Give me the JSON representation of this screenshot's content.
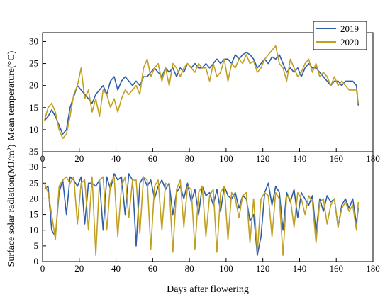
{
  "chart_data": [
    {
      "type": "line",
      "ylabel": "Mean temperature(°C)",
      "xlim": [
        0,
        180
      ],
      "ylim": [
        5,
        32
      ],
      "x_ticks": [
        0,
        20,
        40,
        60,
        80,
        100,
        120,
        140,
        160,
        180
      ],
      "y_ticks": [
        5,
        10,
        15,
        20,
        25,
        30
      ],
      "legend_position": "top-right",
      "series": [
        {
          "name": "2019",
          "color": "#2f5da8",
          "x": [
            1,
            3,
            5,
            7,
            9,
            11,
            13,
            15,
            17,
            19,
            21,
            23,
            25,
            27,
            29,
            31,
            33,
            35,
            37,
            39,
            41,
            43,
            45,
            47,
            49,
            51,
            53,
            55,
            57,
            59,
            61,
            63,
            65,
            67,
            69,
            71,
            73,
            75,
            77,
            79,
            81,
            83,
            85,
            87,
            89,
            91,
            93,
            95,
            97,
            99,
            101,
            103,
            105,
            107,
            109,
            111,
            113,
            115,
            117,
            119,
            121,
            123,
            125,
            127,
            129,
            131,
            133,
            135,
            137,
            139,
            141,
            143,
            145,
            147,
            149,
            151,
            153,
            155,
            157,
            159,
            161,
            163,
            165,
            167,
            169,
            171,
            172
          ],
          "y": [
            12,
            13,
            14.5,
            13,
            11,
            9,
            10,
            15,
            17.5,
            20,
            19,
            18,
            17,
            16,
            18,
            19,
            20,
            18,
            21,
            22,
            19,
            21,
            22,
            21,
            20,
            21,
            20,
            22,
            22,
            23,
            24,
            23,
            22,
            24,
            23,
            24,
            22,
            24,
            23,
            25,
            24,
            25,
            24,
            24,
            25,
            24,
            25,
            26,
            25,
            26,
            26,
            25,
            27,
            26,
            27,
            27.5,
            27,
            26,
            24,
            25,
            26,
            25,
            26.5,
            26,
            27,
            25,
            23,
            24,
            23,
            24,
            22,
            24,
            25,
            24,
            24,
            23,
            22,
            21,
            20,
            21,
            21,
            20,
            21,
            21,
            21,
            20,
            15.5
          ]
        },
        {
          "name": "2020",
          "color": "#c0a020",
          "x": [
            1,
            3,
            5,
            7,
            9,
            11,
            13,
            15,
            17,
            19,
            21,
            23,
            25,
            27,
            29,
            31,
            33,
            35,
            37,
            39,
            41,
            43,
            45,
            47,
            49,
            51,
            53,
            55,
            57,
            59,
            61,
            63,
            65,
            67,
            69,
            71,
            73,
            75,
            77,
            79,
            81,
            83,
            85,
            87,
            89,
            91,
            93,
            95,
            97,
            99,
            101,
            103,
            105,
            107,
            109,
            111,
            113,
            115,
            117,
            119,
            121,
            123,
            125,
            127,
            129,
            131,
            133,
            135,
            137,
            139,
            141,
            143,
            145,
            147,
            149,
            151,
            153,
            155,
            157,
            159,
            161,
            163,
            165,
            167,
            169,
            171,
            172
          ],
          "y": [
            12,
            15,
            16,
            14,
            10,
            8,
            9,
            13,
            18,
            20,
            24,
            17,
            19,
            14,
            17,
            13,
            19,
            18,
            15,
            17,
            14,
            17,
            19,
            18,
            19,
            20,
            18,
            24,
            26,
            22,
            24,
            25,
            21,
            24,
            20,
            25,
            24,
            22,
            24,
            25,
            24,
            23,
            25,
            24,
            24,
            21,
            25,
            22,
            23,
            26,
            21,
            25,
            24,
            26,
            25,
            27,
            25,
            25.5,
            23,
            24,
            26,
            27,
            28,
            29,
            25,
            24,
            21,
            26,
            24,
            22,
            23,
            25,
            26,
            23,
            25,
            22,
            23,
            22,
            20,
            22,
            20,
            21,
            20,
            19,
            19,
            19,
            16
          ]
        }
      ]
    },
    {
      "type": "line",
      "xlabel": "Days after flowering",
      "ylabel": "Surface solar radiation(MJ/m²)",
      "xlim": [
        0,
        180
      ],
      "ylim": [
        0,
        35
      ],
      "x_ticks": [
        0,
        20,
        40,
        60,
        80,
        100,
        120,
        140,
        160,
        180
      ],
      "y_ticks": [
        0,
        5,
        10,
        15,
        20,
        25,
        30,
        35
      ],
      "series": [
        {
          "name": "2019",
          "color": "#2f5da8",
          "x": [
            1,
            3,
            5,
            7,
            9,
            11,
            13,
            15,
            17,
            19,
            21,
            23,
            25,
            27,
            29,
            31,
            33,
            35,
            37,
            39,
            41,
            43,
            45,
            47,
            49,
            51,
            53,
            55,
            57,
            59,
            61,
            63,
            65,
            67,
            69,
            71,
            73,
            75,
            77,
            79,
            81,
            83,
            85,
            87,
            89,
            91,
            93,
            95,
            97,
            99,
            101,
            103,
            105,
            107,
            109,
            111,
            113,
            115,
            117,
            119,
            121,
            123,
            125,
            127,
            129,
            131,
            133,
            135,
            137,
            139,
            141,
            143,
            145,
            147,
            149,
            151,
            153,
            155,
            157,
            159,
            161,
            163,
            165,
            167,
            169,
            171,
            172
          ],
          "y": [
            23,
            24,
            10,
            8,
            22,
            26,
            15,
            27,
            26,
            24,
            27,
            12,
            25,
            25,
            24,
            26,
            10,
            27,
            23,
            28,
            26,
            27,
            15,
            28,
            26,
            5,
            25,
            27,
            24,
            26,
            20,
            24,
            26,
            23,
            25,
            15,
            22,
            24,
            20,
            25,
            19,
            23,
            15,
            24,
            21,
            22,
            18,
            23,
            16,
            24,
            21,
            20,
            22,
            17,
            21,
            20,
            13,
            15,
            2,
            8,
            22,
            25,
            18,
            24,
            22,
            10,
            22,
            19,
            23,
            14,
            22,
            20,
            18,
            21,
            9,
            20,
            16,
            21,
            19,
            20,
            11,
            18,
            20,
            17,
            20,
            12,
            17
          ]
        },
        {
          "name": "2020",
          "color": "#c0a020",
          "x": [
            1,
            3,
            5,
            7,
            9,
            11,
            13,
            15,
            17,
            19,
            21,
            23,
            25,
            27,
            29,
            31,
            33,
            35,
            37,
            39,
            41,
            43,
            45,
            47,
            49,
            51,
            53,
            55,
            57,
            59,
            61,
            63,
            65,
            67,
            69,
            71,
            73,
            75,
            77,
            79,
            81,
            83,
            85,
            87,
            89,
            91,
            93,
            95,
            97,
            99,
            101,
            103,
            105,
            107,
            109,
            111,
            113,
            115,
            117,
            119,
            121,
            123,
            125,
            127,
            129,
            131,
            133,
            135,
            137,
            139,
            141,
            143,
            145,
            147,
            149,
            151,
            153,
            155,
            157,
            159,
            161,
            163,
            165,
            167,
            169,
            171,
            172
          ],
          "y": [
            25,
            22,
            15,
            7,
            24,
            26,
            27,
            25,
            27,
            12,
            25,
            26,
            10,
            27,
            2,
            26,
            27,
            10,
            25,
            27,
            8,
            24,
            27,
            14,
            26,
            26,
            9,
            27,
            26,
            4,
            24,
            26,
            10,
            25,
            24,
            3,
            23,
            26,
            11,
            24,
            23,
            4,
            22,
            24,
            8,
            21,
            23,
            3,
            22,
            24,
            7,
            22,
            20,
            14,
            21,
            22,
            6,
            20,
            3,
            20,
            22,
            21,
            8,
            22,
            20,
            2,
            21,
            20,
            11,
            22,
            20,
            15,
            21,
            19,
            6,
            19,
            20,
            12,
            18,
            20,
            11,
            17,
            19,
            16,
            18,
            10,
            19
          ]
        }
      ]
    }
  ]
}
